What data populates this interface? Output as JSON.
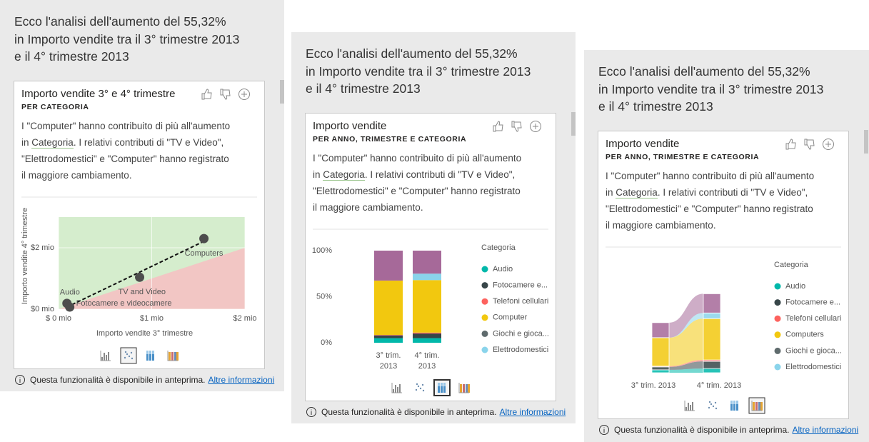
{
  "panels": [
    {
      "heading": [
        "Ecco l'analisi dell'aumento del 55,32%",
        "in Importo vendite tra il 3° trimestre 2013",
        "e il 4° trimestre 2013"
      ],
      "card": {
        "title": "Importo vendite 3° e 4° trimestre",
        "subtitle": "PER CATEGORIA",
        "description": [
          [
            "I \"Computer\" hanno contribuito di più all'aumento"
          ],
          [
            "in ",
            "Categoria",
            ". I relativi contributi di \"TV e Video\","
          ],
          [
            "\"Elettrodomestici\" e \"Computer\" hanno registrato"
          ],
          [
            "il maggiore cambiamento."
          ]
        ],
        "chart": {
          "type": "scatter",
          "x_label": "Importo vendite 3° trimestre",
          "y_label": "Importo vendite 4° trimestre",
          "xlim": [
            0,
            2
          ],
          "ylim": [
            0,
            3
          ],
          "xticks": [
            {
              "value": 0,
              "label": "$ 0 mio"
            },
            {
              "value": 1,
              "label": "$1 mio"
            },
            {
              "value": 2,
              "label": "$2 mio"
            }
          ],
          "yticks": [
            {
              "value": 0,
              "label": "$0 mio"
            },
            {
              "value": 2,
              "label": "$2 mio"
            }
          ],
          "labels": [
            "Audio",
            "Fotocamere e videocamere",
            "TV and Video",
            "Computers"
          ],
          "x": [
            0.09,
            0.12,
            0.87,
            1.56
          ],
          "y": [
            0.19,
            0.07,
            1.04,
            2.3
          ]
        }
      },
      "footer": {
        "note": "Questa funzionalità è disponibile in anteprima.",
        "link": "Altre informazioni"
      }
    },
    {
      "heading": [
        "Ecco l'analisi dell'aumento del 55,32%",
        "in Importo vendite tra il 3° trimestre 2013",
        "e il 4° trimestre 2013"
      ],
      "card": {
        "title": "Importo vendite",
        "subtitle": "PER ANNO, TRIMESTRE E CATEGORIA",
        "description": [
          [
            "I \"Computer\" hanno contribuito di più all'aumento"
          ],
          [
            "in ",
            "Categoria",
            ". I relativi contributi di \"TV e Video\","
          ],
          [
            "\"Elettrodomestici\" e \"Computer\" hanno registrato"
          ],
          [
            "il maggiore cambiamento."
          ]
        ],
        "chart": {
          "type": "bar",
          "stacked": true,
          "legend_title": "Categoria",
          "categories": [
            [
              "3° trim.",
              "2013"
            ],
            [
              "4° trim.",
              "2013"
            ]
          ],
          "ylim": [
            0,
            100
          ],
          "yticks": [
            {
              "value": 0,
              "label": "0%"
            },
            {
              "value": 50,
              "label": "50%"
            },
            {
              "value": 100,
              "label": "100%"
            }
          ],
          "series": [
            {
              "name": "Audio",
              "color": "#01B8AA",
              "values": [
                5,
                5
              ]
            },
            {
              "name": "Fotocamere e...",
              "color": "#374649",
              "values": [
                3,
                5
              ]
            },
            {
              "name": "Telefoni cellulari",
              "color": "#FD625E",
              "values": [
                0.5,
                1
              ]
            },
            {
              "name": "Computer",
              "color": "#F2C80F",
              "values": [
                59,
                57
              ]
            },
            {
              "name": "Giochi e gioca...",
              "color": "#5F6B6D",
              "values": [
                0,
                0
              ]
            },
            {
              "name": "Elettrodomestici",
              "color": "#8AD4EB",
              "values": [
                0,
                7
              ]
            },
            {
              "color": "#A66999",
              "values": [
                32.5,
                25
              ]
            }
          ]
        }
      },
      "footer": {
        "note": "Questa funzionalità è disponibile in anteprima.",
        "link": "Altre informazioni"
      }
    },
    {
      "heading": [
        "Ecco l'analisi dell'aumento del 55,32%",
        "in Importo vendite tra il 3° trimestre 2013",
        "e il 4° trimestre 2013"
      ],
      "card": {
        "title": "Importo vendite",
        "subtitle": "PER ANNO, TRIMESTRE E CATEGORIA",
        "description": [
          [
            "I \"Computer\" hanno contribuito di più all'aumento"
          ],
          [
            "in ",
            "Categoria",
            ". I relativi contributi di \"TV e Video\","
          ],
          [
            "\"Elettrodomestici\" e \"Computer\" hanno registrato"
          ],
          [
            "il maggiore cambiamento."
          ]
        ],
        "chart": {
          "type": "ribbon",
          "legend_title": "Categoria",
          "categories": [
            "3° trim. 2013",
            "4° trim. 2013"
          ],
          "series": [
            {
              "name": "Audio",
              "color": "#01B8AA",
              "values": [
                0.16,
                0.23
              ]
            },
            {
              "name": "Fotocamere e...",
              "color": "#374649",
              "values": [
                0.16,
                0.39
              ]
            },
            {
              "name": "Telefoni cellulari",
              "color": "#FD625E",
              "values": [
                0.04,
                0.08
              ]
            },
            {
              "name": "Computers",
              "color": "#F2C80F",
              "values": [
                1.56,
                2.26
              ]
            },
            {
              "name": "Giochi e gioca...",
              "color": "#5F6B6D",
              "values": [
                0,
                0
              ]
            },
            {
              "name": "Elettrodomestici",
              "color": "#8AD4EB",
              "values": [
                0,
                0.31
              ]
            },
            {
              "color": "#A66999",
              "values": [
                0.82,
                1.05
              ]
            }
          ]
        }
      },
      "footer": {
        "note": "Questa funzionalità è disponibile in anteprima.",
        "link": "Altre informazioni"
      }
    }
  ]
}
